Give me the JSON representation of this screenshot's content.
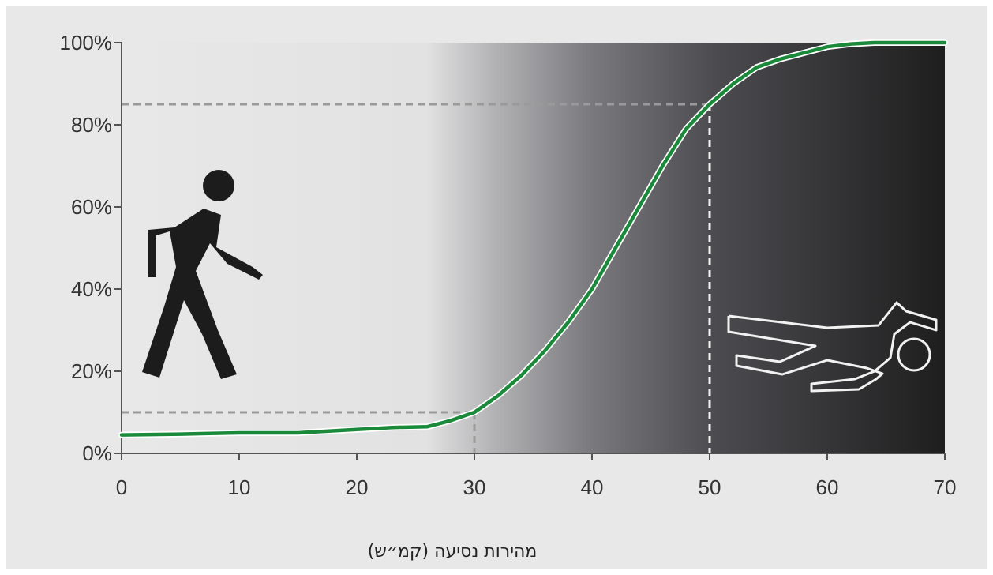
{
  "chart_data": {
    "type": "line",
    "title": "",
    "xlabel": "מהירות נסיעה (קמ״ש)",
    "ylabel": "",
    "xlim": [
      0,
      70
    ],
    "ylim": [
      0,
      100
    ],
    "x_ticks": [
      "0",
      "10",
      "20",
      "30",
      "40",
      "50",
      "60",
      "70"
    ],
    "y_ticks": [
      "0%",
      "20%",
      "40%",
      "60%",
      "80%",
      "100%"
    ],
    "grid": false,
    "series": [
      {
        "x": [
          0,
          5,
          10,
          15,
          20,
          23,
          26,
          28,
          30,
          32,
          34,
          36,
          38,
          40,
          42,
          44,
          46,
          48,
          50,
          52,
          54,
          56,
          58,
          60,
          62,
          64,
          66,
          70
        ],
        "y": [
          4.5,
          4.7,
          5.0,
          5.0,
          5.8,
          6.3,
          6.5,
          8,
          10,
          14,
          19,
          25,
          32,
          40,
          50,
          60,
          70,
          79,
          85,
          90,
          94,
          96,
          97.5,
          99,
          99.7,
          100,
          100,
          100
        ]
      }
    ],
    "reference_lines": [
      {
        "x": 30,
        "y": 10
      },
      {
        "x": 50,
        "y": 85
      }
    ],
    "colors": {
      "line": "#1a8a3a",
      "reference": "#9a9a9a",
      "gradient_light": "#e8e8e8",
      "gradient_dark": "#1e1e1e"
    },
    "icons": [
      "walking-person-icon",
      "lying-body-outline-icon"
    ]
  }
}
